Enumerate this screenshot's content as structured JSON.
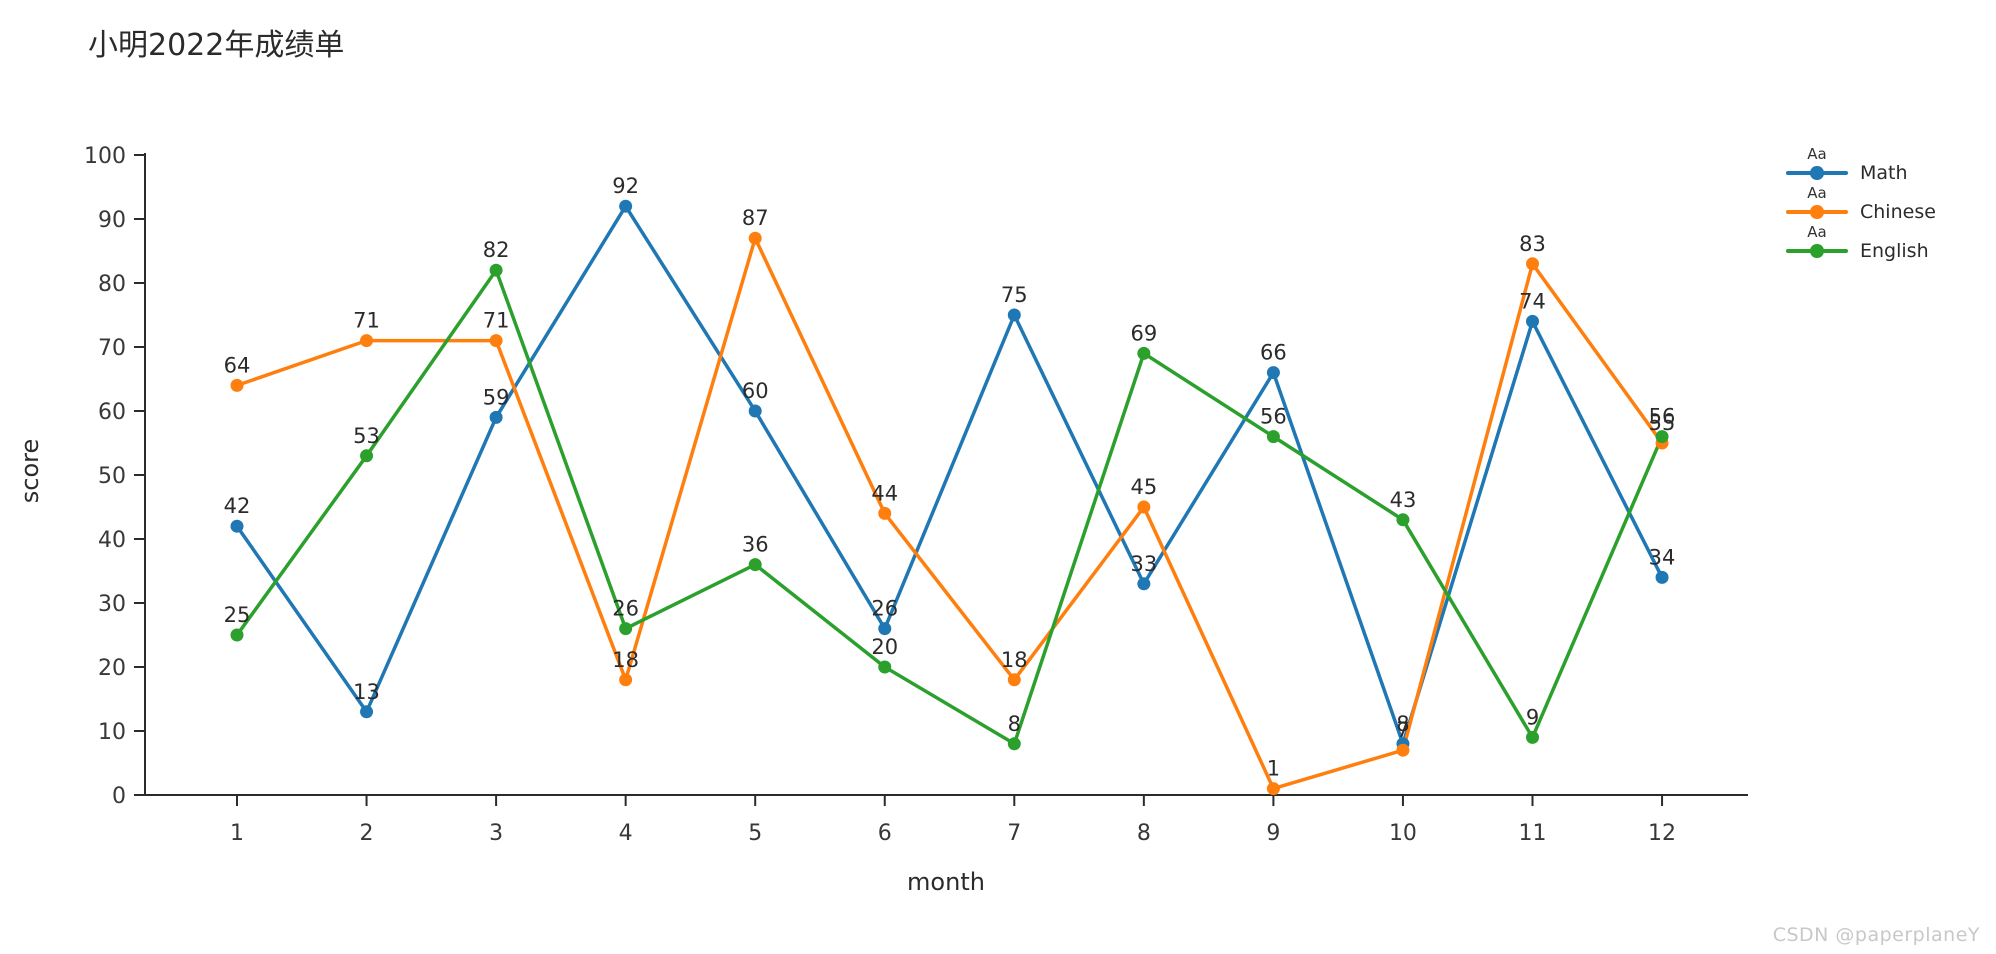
{
  "page": {
    "title": "小明2022年成绩单",
    "watermark": "CSDN @paperplaneY"
  },
  "chart_data": {
    "type": "line",
    "title": "小明2022年成绩单",
    "xlabel": "month",
    "ylabel": "score",
    "ylim": [
      0,
      100
    ],
    "grid": false,
    "point_labels": true,
    "x": [
      1,
      2,
      3,
      4,
      5,
      6,
      7,
      8,
      9,
      10,
      11,
      12
    ],
    "x_ticks": [
      1,
      2,
      3,
      4,
      5,
      6,
      7,
      8,
      9,
      10,
      11,
      12
    ],
    "y_ticks": [
      0,
      10,
      20,
      30,
      40,
      50,
      60,
      70,
      80,
      90,
      100
    ],
    "series": [
      {
        "name": "Math",
        "color": "#1f77b4",
        "values": [
          42,
          13,
          59,
          92,
          60,
          26,
          75,
          33,
          66,
          8,
          74,
          34
        ]
      },
      {
        "name": "Chinese",
        "color": "#ff7f0e",
        "values": [
          64,
          71,
          71,
          18,
          87,
          44,
          18,
          45,
          1,
          7,
          83,
          55
        ]
      },
      {
        "name": "English",
        "color": "#2ca02c",
        "values": [
          25,
          53,
          82,
          26,
          36,
          20,
          8,
          69,
          56,
          43,
          9,
          56
        ]
      }
    ],
    "legend": {
      "position": "top-right",
      "glyph_text": "Aa",
      "entries": [
        "Math",
        "Chinese",
        "English"
      ]
    }
  }
}
